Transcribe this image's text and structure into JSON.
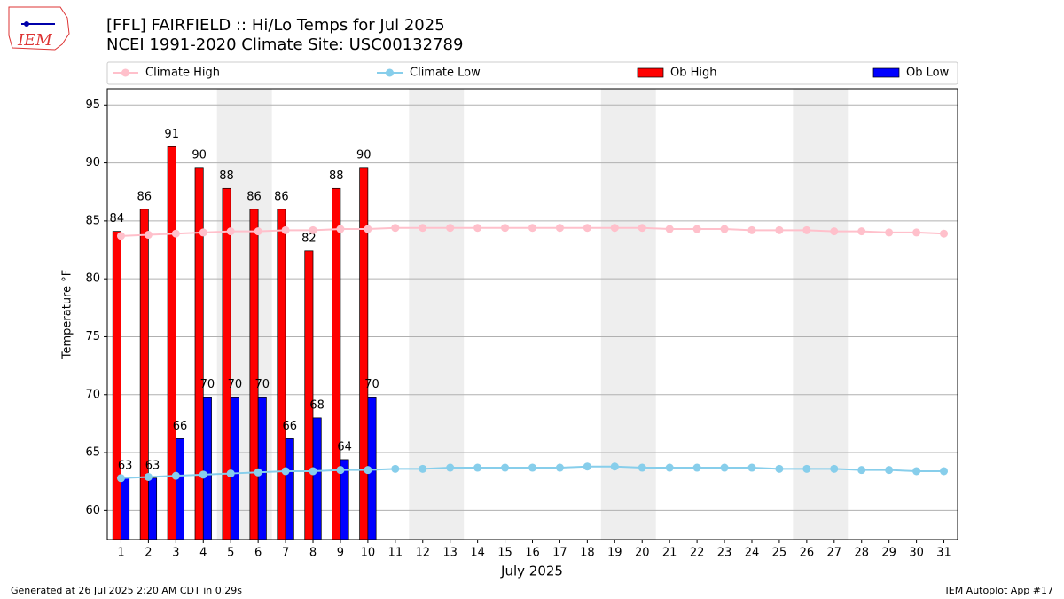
{
  "logo": "IEM",
  "footer": {
    "left": "Generated at 26 Jul 2025 2:20 AM CDT in 0.29s",
    "right": "IEM Autoplot App #17"
  },
  "chart_data": {
    "type": "bar_line",
    "title": "[FFL] FAIRFIELD :: Hi/Lo Temps for Jul 2025",
    "subtitle": "NCEI 1991-2020 Climate Site: USC00132789",
    "xlabel": "July 2025",
    "ylabel": "Temperature °F",
    "x": [
      1,
      2,
      3,
      4,
      5,
      6,
      7,
      8,
      9,
      10,
      11,
      12,
      13,
      14,
      15,
      16,
      17,
      18,
      19,
      20,
      21,
      22,
      23,
      24,
      25,
      26,
      27,
      28,
      29,
      30,
      31
    ],
    "xlim": [
      0.5,
      31.5
    ],
    "xticks": [
      1,
      2,
      3,
      4,
      5,
      6,
      7,
      8,
      9,
      10,
      11,
      12,
      13,
      14,
      15,
      16,
      17,
      18,
      19,
      20,
      21,
      22,
      23,
      24,
      25,
      26,
      27,
      28,
      29,
      30,
      31
    ],
    "ylim": [
      57.5,
      96.4
    ],
    "yticks": [
      60,
      65,
      70,
      75,
      80,
      85,
      90,
      95
    ],
    "grid": true,
    "weekend_shading": [
      [
        4.5,
        6.5
      ],
      [
        11.5,
        13.5
      ],
      [
        18.5,
        20.5
      ],
      [
        25.5,
        27.5
      ]
    ],
    "series": [
      {
        "name": "Climate High",
        "kind": "line",
        "color": "#ffc0cb",
        "values": [
          83.7,
          83.8,
          83.9,
          84.0,
          84.1,
          84.1,
          84.2,
          84.2,
          84.3,
          84.3,
          84.4,
          84.4,
          84.4,
          84.4,
          84.4,
          84.4,
          84.4,
          84.4,
          84.4,
          84.4,
          84.3,
          84.3,
          84.3,
          84.2,
          84.2,
          84.2,
          84.1,
          84.1,
          84.0,
          84.0,
          83.9
        ]
      },
      {
        "name": "Climate Low",
        "kind": "line",
        "color": "#87ceeb",
        "values": [
          62.8,
          62.9,
          63.0,
          63.1,
          63.2,
          63.3,
          63.4,
          63.4,
          63.5,
          63.5,
          63.6,
          63.6,
          63.7,
          63.7,
          63.7,
          63.7,
          63.7,
          63.8,
          63.8,
          63.7,
          63.7,
          63.7,
          63.7,
          63.7,
          63.6,
          63.6,
          63.6,
          63.5,
          63.5,
          63.4,
          63.4
        ]
      },
      {
        "name": "Ob High",
        "kind": "bar",
        "color": "#ff0000",
        "values": [
          84.1,
          86.0,
          91.4,
          89.6,
          87.8,
          86.0,
          86.0,
          82.4,
          87.8,
          89.6,
          null,
          null,
          null,
          null,
          null,
          null,
          null,
          null,
          null,
          null,
          null,
          null,
          null,
          null,
          null,
          null,
          null,
          null,
          null,
          null,
          null
        ],
        "value_labels": [
          "84",
          "86",
          "91",
          "90",
          "88",
          "86",
          "86",
          "82",
          "88",
          "90",
          null,
          null,
          null,
          null,
          null,
          null,
          null,
          null,
          null,
          null,
          null,
          null,
          null,
          null,
          null,
          null,
          null,
          null,
          null,
          null,
          null
        ]
      },
      {
        "name": "Ob Low",
        "kind": "bar",
        "color": "#0000ff",
        "values": [
          62.8,
          62.8,
          66.2,
          69.8,
          69.8,
          69.8,
          66.2,
          68.0,
          64.4,
          69.8,
          null,
          null,
          null,
          null,
          null,
          null,
          null,
          null,
          null,
          null,
          null,
          null,
          null,
          null,
          null,
          null,
          null,
          null,
          null,
          null,
          null
        ],
        "value_labels": [
          "63",
          "63",
          "66",
          "70",
          "70",
          "70",
          "66",
          "68",
          "64",
          "70",
          null,
          null,
          null,
          null,
          null,
          null,
          null,
          null,
          null,
          null,
          null,
          null,
          null,
          null,
          null,
          null,
          null,
          null,
          null,
          null,
          null
        ]
      }
    ]
  }
}
